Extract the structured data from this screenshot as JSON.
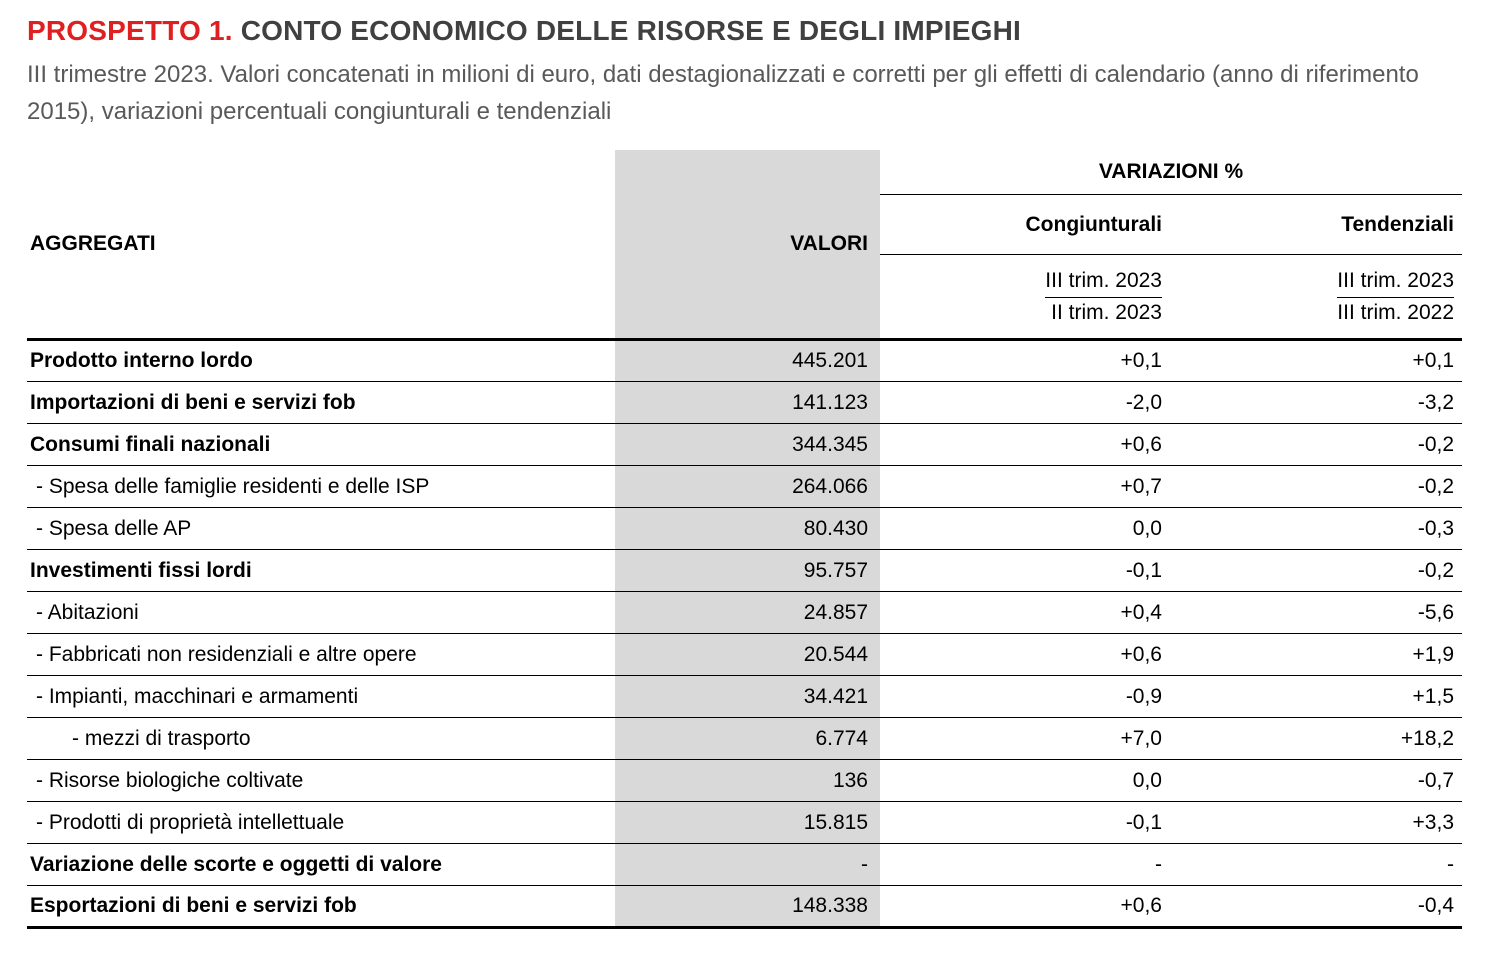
{
  "page": {
    "title_label": "PROSPETTO 1.",
    "title_text": "CONTO ECONOMICO DELLE RISORSE E DEGLI IMPIEGHI",
    "subtitle": "III trimestre 2023. Valori concatenati in milioni di euro, dati destagionalizzati e corretti per gli effetti di calendario (anno di riferimento 2015), variazioni percentuali congiunturali e tendenziali"
  },
  "table": {
    "col_aggregati": "AGGREGATI",
    "col_valori": "VALORI",
    "variazioni_header": "VARIAZIONI %",
    "congiunturali": {
      "label": "Congiunturali",
      "period_top": "III trim. 2023",
      "period_bottom": "II trim. 2023"
    },
    "tendenziali": {
      "label": "Tendenziali",
      "period_top": "III trim. 2023",
      "period_bottom": "III trim. 2022"
    },
    "rows": [
      {
        "label": "Prodotto interno lordo",
        "bold": true,
        "indent": 0,
        "valore": "445.201",
        "cong": "+0,1",
        "tend": "+0,1"
      },
      {
        "label": "Importazioni di beni e servizi fob",
        "bold": true,
        "indent": 0,
        "valore": "141.123",
        "cong": "-2,0",
        "tend": "-3,2"
      },
      {
        "label": "Consumi finali nazionali",
        "bold": true,
        "indent": 0,
        "valore": "344.345",
        "cong": "+0,6",
        "tend": "-0,2"
      },
      {
        "label": "- Spesa delle famiglie residenti e delle ISP",
        "bold": false,
        "indent": 1,
        "valore": "264.066",
        "cong": "+0,7",
        "tend": "-0,2"
      },
      {
        "label": "- Spesa delle AP",
        "bold": false,
        "indent": 1,
        "valore": "80.430",
        "cong": "0,0",
        "tend": "-0,3"
      },
      {
        "label": "Investimenti fissi lordi",
        "bold": true,
        "indent": 0,
        "valore": "95.757",
        "cong": "-0,1",
        "tend": "-0,2"
      },
      {
        "label": "- Abitazioni",
        "bold": false,
        "indent": 1,
        "valore": "24.857",
        "cong": "+0,4",
        "tend": "-5,6"
      },
      {
        "label": "- Fabbricati non residenziali e altre opere",
        "bold": false,
        "indent": 1,
        "valore": "20.544",
        "cong": "+0,6",
        "tend": "+1,9"
      },
      {
        "label": "- Impianti, macchinari e armamenti",
        "bold": false,
        "indent": 1,
        "valore": "34.421",
        "cong": "-0,9",
        "tend": "+1,5"
      },
      {
        "label": "- mezzi di trasporto",
        "bold": false,
        "indent": 2,
        "valore": "6.774",
        "cong": "+7,0",
        "tend": "+18,2"
      },
      {
        "label": "- Risorse biologiche coltivate",
        "bold": false,
        "indent": 1,
        "valore": "136",
        "cong": "0,0",
        "tend": "-0,7"
      },
      {
        "label": "- Prodotti di proprietà intellettuale",
        "bold": false,
        "indent": 1,
        "valore": "15.815",
        "cong": "-0,1",
        "tend": "+3,3"
      },
      {
        "label": "Variazione delle scorte e oggetti di valore",
        "bold": true,
        "indent": 0,
        "valore": "-",
        "cong": "-",
        "tend": "-"
      },
      {
        "label": "Esportazioni di beni e servizi fob",
        "bold": true,
        "indent": 0,
        "valore": "148.338",
        "cong": "+0,6",
        "tend": "-0,4"
      }
    ]
  },
  "colors": {
    "accent_red": "#e02020",
    "title_gray": "#404040",
    "subtitle_gray": "#595959",
    "col_bg": "#d9d9d9"
  }
}
